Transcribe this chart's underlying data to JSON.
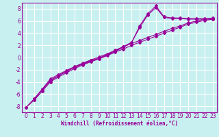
{
  "xlabel": "Windchill (Refroidissement éolien,°C)",
  "background_color": "#c8f0f0",
  "grid_color": "#ffffff",
  "line_color": "#990099",
  "xlim": [
    -0.5,
    23.5
  ],
  "ylim": [
    -9,
    9
  ],
  "xticks": [
    0,
    1,
    2,
    3,
    4,
    5,
    6,
    7,
    8,
    9,
    10,
    11,
    12,
    13,
    14,
    15,
    16,
    17,
    18,
    19,
    20,
    21,
    22,
    23
  ],
  "yticks": [
    -8,
    -6,
    -4,
    -2,
    0,
    2,
    4,
    6,
    8
  ],
  "line1_x": [
    0,
    1,
    2,
    3,
    4,
    5,
    6,
    7,
    8,
    9,
    10,
    11,
    12,
    13,
    14,
    15,
    16,
    17,
    18,
    19,
    20,
    21,
    22,
    23
  ],
  "line1_y": [
    -8.2,
    -7.0,
    -5.5,
    -4.0,
    -3.2,
    -2.5,
    -1.8,
    -1.2,
    -0.7,
    -0.2,
    0.3,
    0.9,
    1.4,
    2.0,
    2.5,
    3.0,
    3.5,
    4.0,
    4.5,
    5.0,
    5.5,
    5.8,
    6.1,
    6.3
  ],
  "line2_x": [
    0,
    1,
    2,
    3,
    4,
    5,
    6,
    7,
    8,
    9,
    10,
    11,
    12,
    13,
    14,
    15,
    16,
    17,
    18,
    19,
    20,
    21,
    22,
    23
  ],
  "line2_y": [
    -8.2,
    -6.8,
    -5.2,
    -3.8,
    -3.0,
    -2.2,
    -1.5,
    -0.9,
    -0.4,
    0.1,
    0.6,
    1.2,
    1.8,
    2.3,
    2.8,
    3.3,
    3.8,
    4.3,
    4.8,
    5.2,
    5.7,
    6.0,
    6.3,
    6.5
  ],
  "line3_x": [
    1,
    2,
    3,
    4,
    5,
    6,
    7,
    8,
    9,
    10,
    11,
    12,
    13,
    14,
    15,
    16,
    17,
    18,
    19,
    20,
    21,
    22,
    23
  ],
  "line3_y": [
    -7.0,
    -5.5,
    -3.7,
    -3.0,
    -2.3,
    -1.6,
    -1.1,
    -0.6,
    -0.2,
    0.4,
    1.0,
    1.7,
    2.4,
    5.2,
    7.2,
    8.5,
    6.7,
    6.5,
    6.5,
    6.4,
    6.4,
    6.4,
    6.4
  ],
  "line4_x": [
    1,
    2,
    3,
    4,
    5,
    6,
    7,
    8,
    9,
    10,
    11,
    12,
    13,
    14,
    15,
    16,
    17,
    18,
    19,
    20,
    21,
    22,
    23
  ],
  "line4_y": [
    -6.8,
    -5.2,
    -3.5,
    -2.8,
    -2.1,
    -1.5,
    -1.0,
    -0.5,
    -0.1,
    0.5,
    1.1,
    1.8,
    2.5,
    4.9,
    7.0,
    8.2,
    6.6,
    6.4,
    6.4,
    6.3,
    6.3,
    6.3,
    6.3
  ]
}
